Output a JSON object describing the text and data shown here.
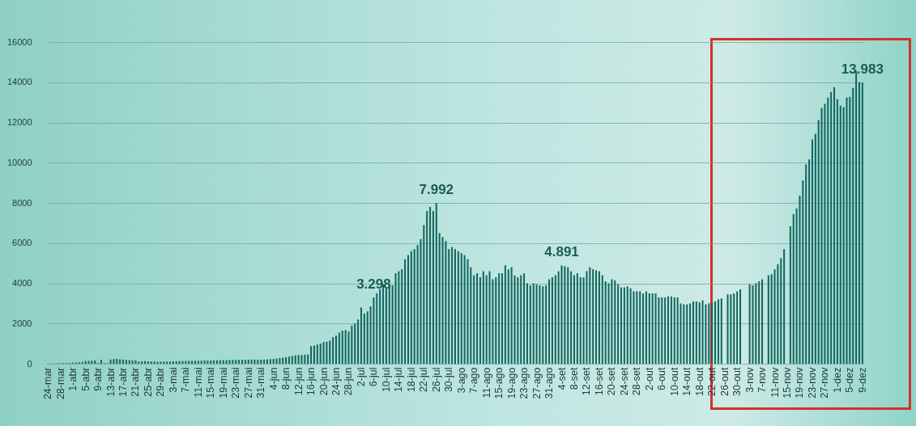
{
  "chart_data": {
    "type": "bar",
    "color": "#11655e",
    "grid": "y",
    "ylim": [
      0,
      16000
    ],
    "yticks": [
      0,
      2000,
      4000,
      6000,
      8000,
      10000,
      12000,
      14000,
      16000
    ],
    "categories": [
      "24-mar",
      null,
      null,
      null,
      "28-mar",
      null,
      null,
      null,
      "1-abr",
      null,
      null,
      null,
      "5-abr",
      null,
      null,
      null,
      "9-abr",
      null,
      null,
      null,
      "13-abr",
      null,
      null,
      null,
      "17-abr",
      null,
      null,
      null,
      "21-abr",
      null,
      null,
      null,
      "25-abr",
      null,
      null,
      null,
      "29-abr",
      null,
      null,
      null,
      "3-mai",
      null,
      null,
      null,
      "7-mai",
      null,
      null,
      null,
      "11-mai",
      null,
      null,
      null,
      "15-mai",
      null,
      null,
      null,
      "19-mai",
      null,
      null,
      null,
      "23-mai",
      null,
      null,
      null,
      "27-mai",
      null,
      null,
      null,
      "31-mai",
      null,
      null,
      null,
      "4-jun",
      null,
      null,
      null,
      "8-jun",
      null,
      null,
      null,
      "12-jun",
      null,
      null,
      null,
      "16-jun",
      null,
      null,
      null,
      "20-jun",
      null,
      null,
      null,
      "24-jun",
      null,
      null,
      null,
      "28-jun",
      null,
      null,
      null,
      "2-jul",
      null,
      null,
      null,
      "6-jul",
      null,
      null,
      null,
      "10-jul",
      null,
      null,
      null,
      "14-jul",
      null,
      null,
      null,
      "18-jul",
      null,
      null,
      null,
      "22-jul",
      null,
      null,
      null,
      "26-jul",
      null,
      null,
      null,
      "30-jul",
      null,
      null,
      null,
      "3-ago",
      null,
      null,
      null,
      "7-ago",
      null,
      null,
      null,
      "11-ago",
      null,
      null,
      null,
      "15-ago",
      null,
      null,
      null,
      "19-ago",
      null,
      null,
      null,
      "23-ago",
      null,
      null,
      null,
      "27-ago",
      null,
      null,
      null,
      "31-ago",
      null,
      null,
      null,
      "4-set",
      null,
      null,
      null,
      "8-set",
      null,
      null,
      null,
      "12-set",
      null,
      null,
      null,
      "16-set",
      null,
      null,
      null,
      "20-set",
      null,
      null,
      null,
      "24-set",
      null,
      null,
      null,
      "28-set",
      null,
      null,
      null,
      "2-out",
      null,
      null,
      null,
      "6-out",
      null,
      null,
      null,
      "10-out",
      null,
      null,
      null,
      "14-out",
      null,
      null,
      null,
      "18-out",
      null,
      null,
      null,
      "22-out",
      null,
      null,
      null,
      "26-out",
      null,
      null,
      null,
      "30-out",
      null,
      null,
      null,
      "3-nov",
      null,
      null,
      null,
      "7-nov",
      null,
      null,
      null,
      "11-nov",
      null,
      null,
      null,
      "15-nov",
      null,
      null,
      null,
      "19-nov",
      null,
      null,
      null,
      "23-nov",
      null,
      null,
      null,
      "27-nov",
      null,
      null,
      null,
      "1-dez",
      null,
      null,
      null,
      "5-dez",
      null,
      null,
      null,
      "9-dez"
    ],
    "values": [
      5,
      10,
      15,
      20,
      25,
      30,
      35,
      40,
      50,
      60,
      70,
      90,
      130,
      140,
      150,
      160,
      40,
      200,
      30,
      20,
      210,
      230,
      240,
      220,
      200,
      190,
      180,
      170,
      160,
      100,
      120,
      130,
      120,
      110,
      110,
      100,
      100,
      110,
      110,
      115,
      120,
      125,
      130,
      130,
      135,
      140,
      145,
      150,
      150,
      155,
      160,
      160,
      165,
      170,
      170,
      175,
      180,
      180,
      185,
      190,
      190,
      195,
      200,
      200,
      205,
      210,
      200,
      195,
      200,
      210,
      220,
      230,
      240,
      260,
      280,
      300,
      330,
      360,
      390,
      420,
      430,
      440,
      450,
      460,
      880,
      900,
      950,
      1000,
      1080,
      1100,
      1150,
      1320,
      1400,
      1550,
      1650,
      1680,
      1600,
      1900,
      2000,
      2200,
      2800,
      2500,
      2600,
      2850,
      3298,
      3500,
      3700,
      3950,
      3750,
      3800,
      3900,
      4500,
      4600,
      4700,
      5200,
      5400,
      5600,
      5700,
      5900,
      6200,
      6900,
      7600,
      7800,
      7600,
      7992,
      6500,
      6300,
      6100,
      5700,
      5800,
      5700,
      5600,
      5500,
      5400,
      5200,
      4800,
      4400,
      4500,
      4300,
      4600,
      4400,
      4600,
      4200,
      4300,
      4500,
      4500,
      4900,
      4700,
      4800,
      4400,
      4300,
      4400,
      4500,
      4000,
      3900,
      4000,
      3950,
      3900,
      3850,
      3900,
      4200,
      4300,
      4400,
      4600,
      4891,
      4850,
      4800,
      4600,
      4400,
      4500,
      4300,
      4300,
      4600,
      4800,
      4700,
      4650,
      4600,
      4400,
      4100,
      4000,
      4200,
      4150,
      3950,
      3800,
      3800,
      3850,
      3750,
      3600,
      3600,
      3600,
      3500,
      3600,
      3500,
      3500,
      3500,
      3300,
      3300,
      3300,
      3350,
      3350,
      3300,
      3300,
      3000,
      2950,
      2950,
      3000,
      3100,
      3100,
      3050,
      3150,
      2950,
      3000,
      3050,
      3100,
      3200,
      3250,
      null,
      3450,
      3450,
      3500,
      3600,
      3700,
      null,
      null,
      3950,
      3900,
      4000,
      4100,
      4200,
      null,
      4400,
      4450,
      4700,
      4950,
      5250,
      5700,
      null,
      6840,
      7440,
      7720,
      8360,
      9120,
      9920,
      10160,
      11160,
      11440,
      12120,
      12720,
      12920,
      13240,
      13520,
      13760,
      13160,
      12840,
      12760,
      13240,
      13280,
      13720,
      14560,
      14000,
      13983
    ],
    "annotations": [
      {
        "text": "3.298",
        "x": "6-jul",
        "y": 3298
      },
      {
        "text": "7.992",
        "x": "26-jul",
        "y": 7992
      },
      {
        "text": "4.891",
        "x": "4-set",
        "y": 4891
      },
      {
        "text": "13.983",
        "x": "9-dez",
        "y": 13983
      }
    ]
  }
}
